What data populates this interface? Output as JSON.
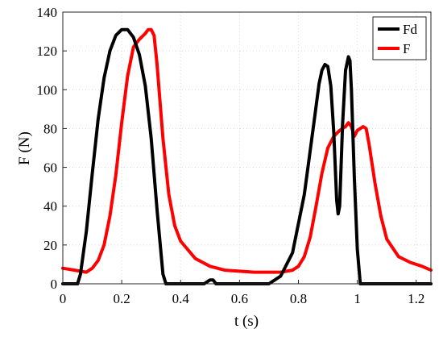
{
  "chart_data": {
    "type": "line",
    "title": "",
    "xlabel": "t (s)",
    "ylabel": "F (N)",
    "xlim": [
      0,
      1.25
    ],
    "ylim": [
      0,
      140
    ],
    "x_ticks": [
      0,
      0.2,
      0.4,
      0.6,
      0.8,
      1,
      1.2
    ],
    "x_tick_labels": [
      "0",
      "0.2",
      "0.4",
      "0.6",
      "0.8",
      "1",
      "1.2"
    ],
    "y_ticks": [
      0,
      20,
      40,
      60,
      80,
      100,
      120,
      140
    ],
    "y_tick_labels": [
      "0",
      "20",
      "40",
      "60",
      "80",
      "100",
      "120",
      "140"
    ],
    "grid": true,
    "legend_position": "top-right",
    "series": [
      {
        "name": "Fd",
        "color": "#000000",
        "x": [
          0,
          0.04,
          0.05,
          0.06,
          0.08,
          0.1,
          0.12,
          0.14,
          0.16,
          0.18,
          0.2,
          0.22,
          0.24,
          0.26,
          0.28,
          0.3,
          0.32,
          0.34,
          0.35,
          0.4,
          0.48,
          0.5,
          0.51,
          0.52,
          0.6,
          0.65,
          0.7,
          0.74,
          0.78,
          0.82,
          0.85,
          0.87,
          0.88,
          0.89,
          0.9,
          0.91,
          0.92,
          0.93,
          0.935,
          0.94,
          0.95,
          0.96,
          0.97,
          0.975,
          0.98,
          0.99,
          1.0,
          1.01,
          1.02,
          1.05,
          1.1,
          1.2,
          1.25
        ],
        "y": [
          0,
          0,
          0,
          5,
          27,
          57,
          85,
          106,
          120,
          128,
          131,
          131,
          127,
          118,
          102,
          75,
          38,
          5,
          0,
          0,
          0,
          2,
          2,
          0,
          0,
          0,
          0,
          4,
          16,
          46,
          80,
          103,
          110,
          113,
          112,
          102,
          78,
          43,
          36,
          40,
          82,
          110,
          117,
          115,
          100,
          55,
          18,
          0,
          0,
          0,
          0,
          0,
          0
        ]
      },
      {
        "name": "F",
        "color": "#ff0000",
        "x": [
          0,
          0.04,
          0.08,
          0.1,
          0.12,
          0.14,
          0.16,
          0.18,
          0.2,
          0.22,
          0.24,
          0.26,
          0.28,
          0.29,
          0.3,
          0.31,
          0.32,
          0.34,
          0.36,
          0.38,
          0.4,
          0.45,
          0.5,
          0.55,
          0.6,
          0.65,
          0.7,
          0.74,
          0.78,
          0.8,
          0.82,
          0.84,
          0.86,
          0.88,
          0.9,
          0.92,
          0.94,
          0.96,
          0.97,
          0.98,
          0.99,
          1.0,
          1.01,
          1.02,
          1.03,
          1.04,
          1.06,
          1.08,
          1.1,
          1.14,
          1.18,
          1.22,
          1.25
        ],
        "y": [
          8,
          7,
          6,
          8,
          12,
          20,
          35,
          56,
          83,
          107,
          122,
          126,
          129,
          131,
          131,
          128,
          113,
          75,
          46,
          30,
          22,
          13,
          9,
          7,
          6.5,
          6,
          6,
          6,
          7,
          9,
          14,
          24,
          40,
          57,
          70,
          76,
          79,
          81,
          83,
          81,
          76,
          79,
          80,
          81,
          80,
          72,
          52,
          35,
          23,
          14,
          11,
          9,
          7
        ]
      }
    ]
  }
}
